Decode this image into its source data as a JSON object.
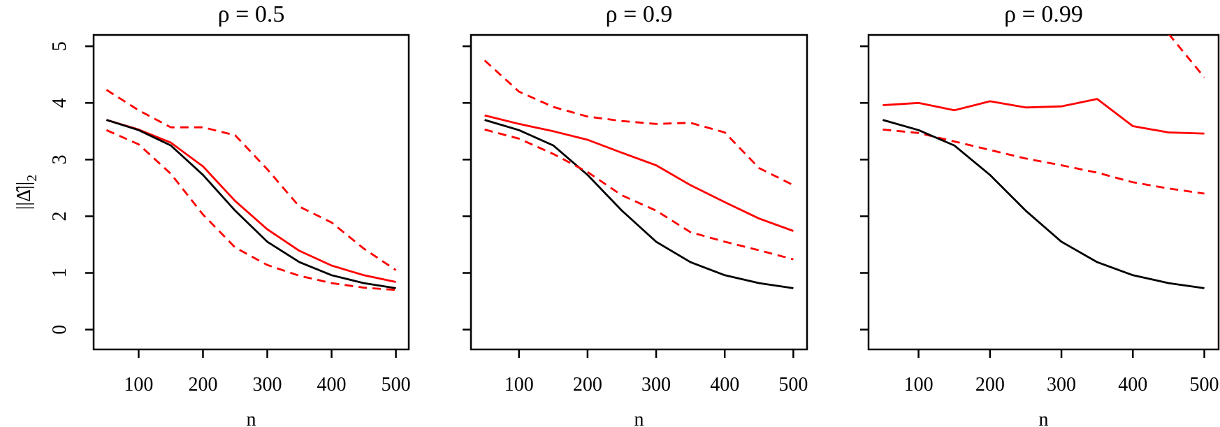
{
  "chart_data": [
    {
      "type": "line",
      "title": "ρ = 0.5",
      "xlabel": "n",
      "ylabel": "||Δ̂||",
      "ylabel_subscript": "2",
      "xlim": [
        30,
        520
      ],
      "ylim": [
        -0.35,
        5.2
      ],
      "xticks": [
        100,
        200,
        300,
        400,
        500
      ],
      "yticks": [
        0,
        1,
        2,
        3,
        4,
        5
      ],
      "x": [
        50,
        100,
        150,
        200,
        250,
        300,
        350,
        400,
        450,
        500
      ],
      "series": [
        {
          "color": "#ff0000",
          "dash": "dashed",
          "values": [
            4.23,
            3.87,
            3.57,
            3.57,
            3.43,
            2.83,
            2.17,
            1.89,
            1.43,
            1.05
          ]
        },
        {
          "color": "#ff0000",
          "dash": "solid",
          "values": [
            3.7,
            3.53,
            3.3,
            2.88,
            2.27,
            1.77,
            1.39,
            1.13,
            0.96,
            0.84
          ]
        },
        {
          "color": "#000000",
          "dash": "solid",
          "values": [
            3.7,
            3.52,
            3.25,
            2.73,
            2.1,
            1.55,
            1.19,
            0.96,
            0.82,
            0.73
          ]
        },
        {
          "color": "#ff0000",
          "dash": "dashed",
          "values": [
            3.52,
            3.27,
            2.75,
            2.03,
            1.45,
            1.14,
            0.95,
            0.82,
            0.74,
            0.7
          ]
        }
      ]
    },
    {
      "type": "line",
      "title": "ρ = 0.9",
      "xlabel": "n",
      "xlim": [
        30,
        520
      ],
      "ylim": [
        -0.35,
        5.2
      ],
      "xticks": [
        100,
        200,
        300,
        400,
        500
      ],
      "yticks": [
        0,
        1,
        2,
        3,
        4,
        5
      ],
      "x": [
        50,
        100,
        150,
        200,
        250,
        300,
        350,
        400,
        450,
        500
      ],
      "series": [
        {
          "color": "#ff0000",
          "dash": "dashed",
          "values": [
            4.75,
            4.2,
            3.93,
            3.76,
            3.68,
            3.63,
            3.65,
            3.48,
            2.85,
            2.55
          ]
        },
        {
          "color": "#ff0000",
          "dash": "solid",
          "values": [
            3.78,
            3.63,
            3.5,
            3.35,
            3.12,
            2.9,
            2.55,
            2.25,
            1.96,
            1.74
          ]
        },
        {
          "color": "#000000",
          "dash": "solid",
          "values": [
            3.7,
            3.52,
            3.25,
            2.73,
            2.1,
            1.55,
            1.19,
            0.96,
            0.82,
            0.73
          ]
        },
        {
          "color": "#ff0000",
          "dash": "dashed",
          "values": [
            3.53,
            3.37,
            3.1,
            2.78,
            2.37,
            2.1,
            1.72,
            1.55,
            1.4,
            1.24
          ]
        }
      ]
    },
    {
      "type": "line",
      "title": "ρ = 0.99",
      "xlabel": "n",
      "xlim": [
        30,
        520
      ],
      "ylim": [
        -0.35,
        5.2
      ],
      "xticks": [
        100,
        200,
        300,
        400,
        500
      ],
      "yticks": [
        0,
        1,
        2,
        3,
        4,
        5
      ],
      "x": [
        50,
        100,
        150,
        200,
        250,
        300,
        350,
        400,
        450,
        500
      ],
      "series": [
        {
          "color": "#ff0000",
          "dash": "dashed",
          "values": [
            null,
            null,
            null,
            null,
            null,
            null,
            null,
            null,
            5.22,
            4.45
          ]
        },
        {
          "color": "#ff0000",
          "dash": "solid",
          "values": [
            3.96,
            4.0,
            3.87,
            4.03,
            3.92,
            3.94,
            4.07,
            3.59,
            3.48,
            3.46
          ]
        },
        {
          "color": "#ff0000",
          "dash": "dashed",
          "values": [
            3.53,
            3.47,
            3.32,
            3.17,
            3.02,
            2.9,
            2.77,
            2.6,
            2.49,
            2.4
          ]
        },
        {
          "color": "#000000",
          "dash": "solid",
          "values": [
            3.7,
            3.52,
            3.25,
            2.73,
            2.1,
            1.55,
            1.19,
            0.96,
            0.82,
            0.73
          ]
        }
      ]
    }
  ]
}
